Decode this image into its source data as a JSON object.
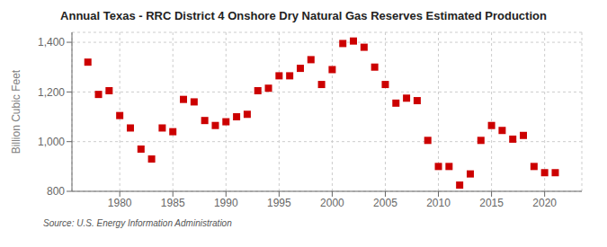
{
  "chart_data": {
    "type": "scatter",
    "title": "Annual Texas - RRC District 4 Onshore Dry Natural Gas Reserves Estimated Production",
    "ylabel": "Billion Cubic Feet",
    "annotations": [
      "Source: U.S. Energy Information Administration"
    ],
    "x": [
      1977,
      1978,
      1979,
      1980,
      1981,
      1982,
      1983,
      1984,
      1985,
      1986,
      1987,
      1988,
      1989,
      1990,
      1991,
      1992,
      1993,
      1994,
      1995,
      1996,
      1997,
      1998,
      1999,
      2000,
      2001,
      2002,
      2003,
      2004,
      2005,
      2006,
      2007,
      2008,
      2009,
      2010,
      2011,
      2012,
      2013,
      2014,
      2015,
      2016,
      2017,
      2018,
      2019,
      2020,
      2021
    ],
    "values": [
      1320,
      1190,
      1205,
      1105,
      1055,
      970,
      930,
      1055,
      1040,
      1170,
      1160,
      1085,
      1065,
      1080,
      1100,
      1110,
      1205,
      1215,
      1265,
      1265,
      1295,
      1330,
      1230,
      1290,
      1395,
      1405,
      1380,
      1300,
      1230,
      1155,
      1175,
      1165,
      1005,
      900,
      900,
      825,
      870,
      1005,
      1065,
      1045,
      1010,
      1025,
      900,
      875,
      875
    ],
    "color": "#cc0000",
    "marker": "square",
    "grid": true,
    "xlim": [
      1975.5,
      2023.5
    ],
    "xticks": [
      1980,
      1985,
      1990,
      1995,
      2000,
      2005,
      2010,
      2015,
      2020
    ],
    "ylim": [
      800,
      1440
    ],
    "yticks": [
      800,
      {
        "value": 1000,
        "label": "1,000"
      },
      {
        "value": 1200,
        "label": "1,200"
      },
      {
        "value": 1400,
        "label": "1,400"
      }
    ]
  }
}
